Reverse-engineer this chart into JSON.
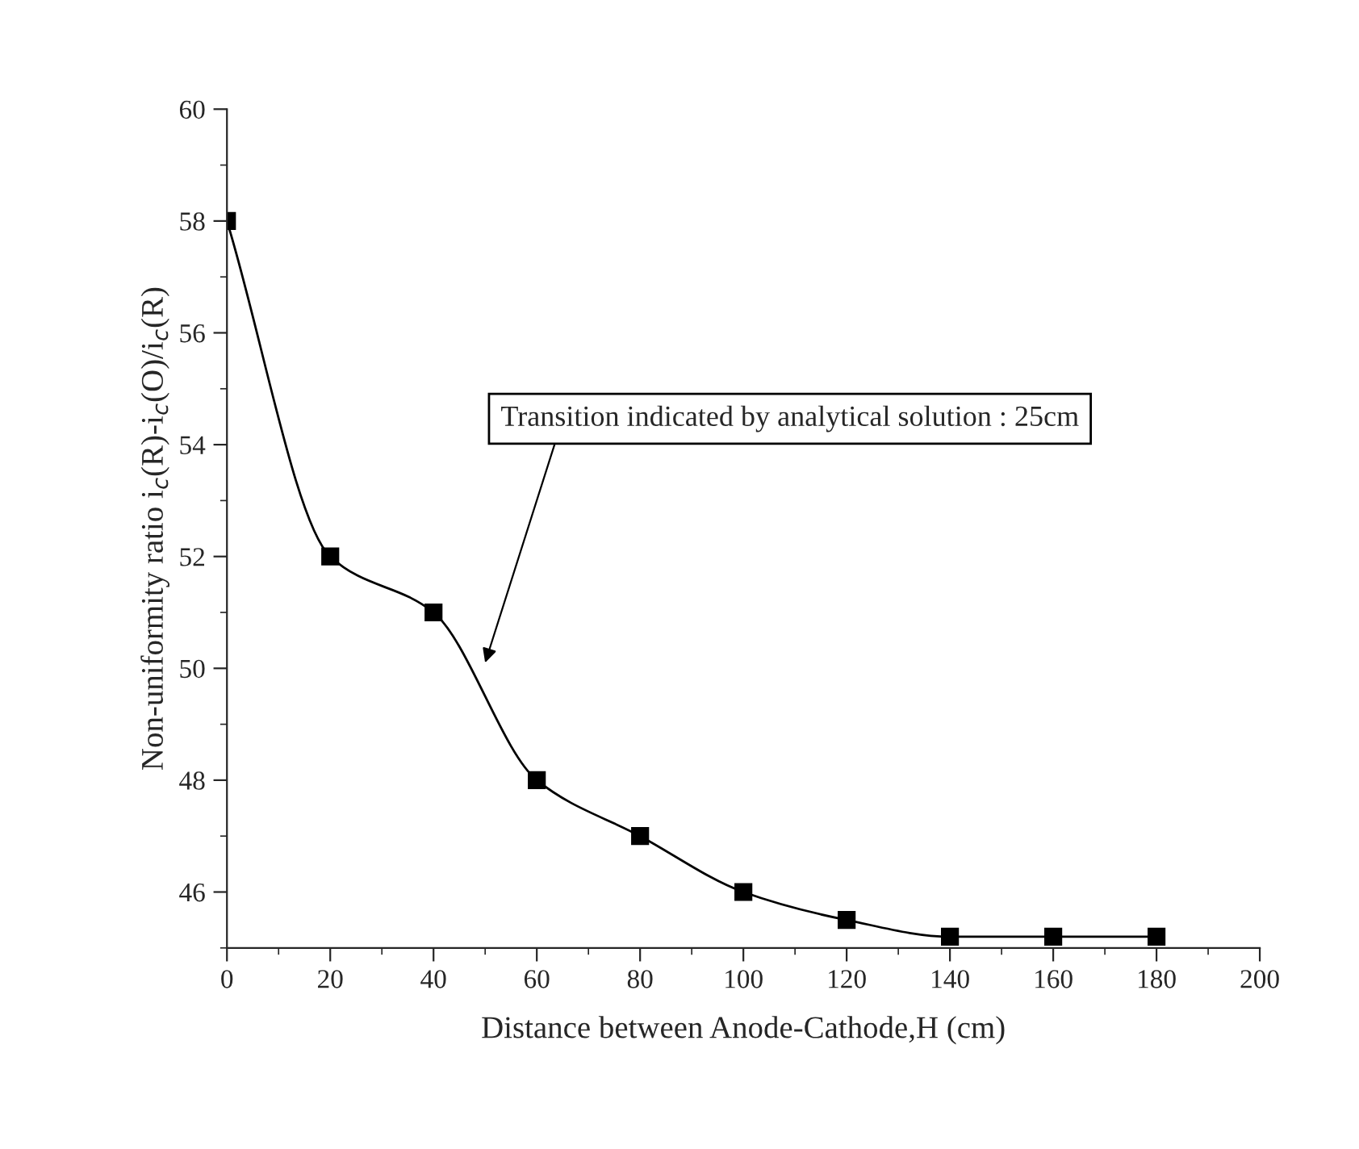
{
  "chart_data": {
    "type": "line",
    "xlabel": "Distance between Anode-Cathode,H (cm)",
    "ylabel": "Non-uniformity ratio i$_{c}$(R)-i$_{c}$(O)/i$_{c}$(R)",
    "x": [
      0,
      20,
      40,
      60,
      80,
      100,
      120,
      140,
      160,
      180
    ],
    "series": [
      {
        "color": "#000000",
        "values": [
          58,
          52,
          51,
          48,
          47,
          46,
          45.5,
          45.2,
          45.2,
          45.2
        ]
      }
    ],
    "xlim": [
      0,
      200
    ],
    "xticks": [
      0,
      20,
      40,
      60,
      80,
      100,
      120,
      140,
      160,
      180,
      200
    ],
    "ylim": [
      45,
      60
    ],
    "yticks": [
      46,
      48,
      50,
      52,
      54,
      56,
      58,
      60
    ],
    "marker": "square",
    "line_style": "solid",
    "grid": false,
    "legend": false,
    "annotations": [
      "Transition indicated by analytical solution : 25cm"
    ]
  }
}
